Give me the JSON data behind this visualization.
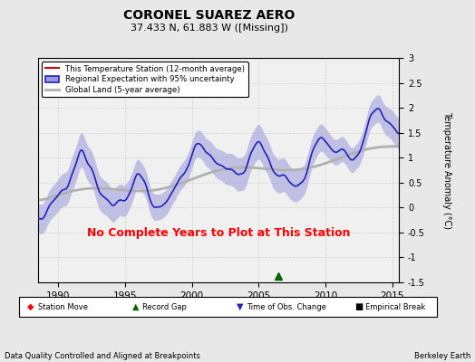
{
  "title": "CORONEL SUAREZ AERO",
  "subtitle": "37.433 N, 61.883 W ([Missing])",
  "xlabel_left": "Data Quality Controlled and Aligned at Breakpoints",
  "xlabel_right": "Berkeley Earth",
  "ylabel": "Temperature Anomaly (°C)",
  "xlim": [
    1988.5,
    2015.5
  ],
  "ylim": [
    -1.5,
    3.0
  ],
  "yticks": [
    -1.5,
    -1.0,
    -0.5,
    0.0,
    0.5,
    1.0,
    1.5,
    2.0,
    2.5,
    3.0
  ],
  "xticks": [
    1990,
    1995,
    2000,
    2005,
    2010,
    2015
  ],
  "no_data_text": "No Complete Years to Plot at This Station",
  "no_data_color": "red",
  "background_color": "#e8e8e8",
  "plot_bg_color": "#f0f0f0",
  "regional_fill_color": "#9999dd",
  "regional_line_color": "#2222bb",
  "global_line_color": "#b0b0b0",
  "station_line_color": "#cc0000",
  "record_gap_x": 2006.5,
  "record_gap_y": -1.38,
  "legend_items": [
    {
      "label": "This Temperature Station (12-month average)",
      "color": "#cc0000",
      "lw": 1.5
    },
    {
      "label": "Regional Expectation with 95% uncertainty",
      "color": "#2222bb",
      "lw": 1.5
    },
    {
      "label": "Global Land (5-year average)",
      "color": "#b0b0b0",
      "lw": 2.5
    }
  ]
}
